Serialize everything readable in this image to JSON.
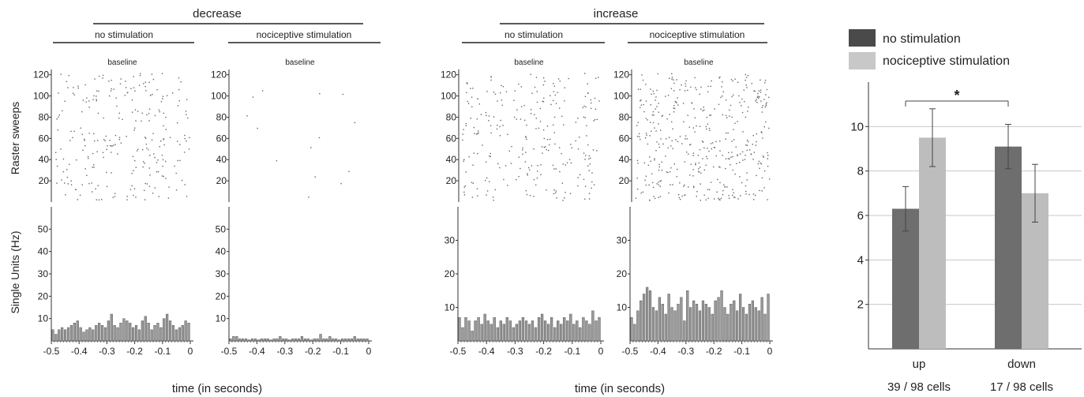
{
  "headers": {
    "decrease": "decrease",
    "increase": "increase",
    "no_stim": "no stimulation",
    "noci_stim": "nociceptive stimulation",
    "baseline": "baseline"
  },
  "axis_labels": {
    "raster": "Raster sweeps",
    "single_units": "Single Units (Hz)",
    "time": "time (in seconds)"
  },
  "legend": {
    "no_stim": "no stimulation",
    "noci_stim": "nociceptive stimulation"
  },
  "colors": {
    "no_stim_bar": "#6e6e6e",
    "noci_stim_bar": "#bdbdbd",
    "hist_bar": "#9a9a9a",
    "raster_dot": "#666666",
    "legend_dark": "#4a4a4a",
    "legend_light": "#c8c8c8"
  },
  "chart_data": [
    {
      "type": "scatter",
      "group": "decrease",
      "condition": "no stimulation",
      "title": "baseline",
      "ylabel": "Raster sweeps",
      "xlim": [
        -0.5,
        0
      ],
      "ylim": [
        0,
        125
      ],
      "yticks": [
        "20",
        "40",
        "60",
        "80",
        "100",
        "120"
      ],
      "density": "high"
    },
    {
      "type": "scatter",
      "group": "decrease",
      "condition": "nociceptive stimulation",
      "title": "baseline",
      "xlim": [
        -0.5,
        0
      ],
      "ylim": [
        0,
        125
      ],
      "yticks": [
        "20",
        "40",
        "60",
        "80",
        "100",
        "120"
      ],
      "density": "sparse"
    },
    {
      "type": "scatter",
      "group": "increase",
      "condition": "no stimulation",
      "title": "baseline",
      "xlim": [
        -0.5,
        0
      ],
      "ylim": [
        0,
        125
      ],
      "yticks": [
        "20",
        "40",
        "60",
        "80",
        "100",
        "120"
      ],
      "density": "high"
    },
    {
      "type": "scatter",
      "group": "increase",
      "condition": "nociceptive stimulation",
      "title": "baseline",
      "xlim": [
        -0.5,
        0
      ],
      "ylim": [
        0,
        125
      ],
      "yticks": [
        "20",
        "40",
        "60",
        "80",
        "100",
        "120"
      ],
      "density": "very high"
    },
    {
      "type": "bar",
      "group": "decrease",
      "condition": "no stimulation",
      "ylabel": "Single Units (Hz)",
      "xlabel": "time (in seconds)",
      "xlim": [
        -0.5,
        0
      ],
      "ylim": [
        0,
        60
      ],
      "yticks": [
        "10",
        "20",
        "30",
        "40",
        "50"
      ],
      "xticks": [
        "-0.5",
        "-0.4",
        "-0.3",
        "-0.2",
        "-0.1",
        "0"
      ],
      "values": [
        5,
        3,
        5,
        6,
        5,
        6,
        7,
        8,
        9,
        6,
        4,
        5,
        6,
        5,
        7,
        8,
        7,
        6,
        9,
        12,
        7,
        6,
        8,
        10,
        9,
        8,
        6,
        7,
        5,
        9,
        11,
        8,
        5,
        7,
        8,
        6,
        10,
        12,
        9,
        7,
        5,
        6,
        7,
        9,
        8
      ]
    },
    {
      "type": "bar",
      "group": "decrease",
      "condition": "nociceptive stimulation",
      "xlim": [
        -0.5,
        0
      ],
      "ylim": [
        0,
        60
      ],
      "yticks": [
        "10",
        "20",
        "30",
        "40",
        "50"
      ],
      "xticks": [
        "-0.5",
        "-0.4",
        "-0.3",
        "-0.2",
        "-0.1",
        "0"
      ],
      "values": [
        1,
        2,
        2,
        1,
        1,
        1,
        0.5,
        1,
        1,
        0.5,
        1,
        1,
        1,
        0.5,
        1,
        1,
        2,
        1,
        1,
        0.5,
        1,
        1,
        1,
        2,
        1,
        1,
        0.5,
        1,
        1,
        3,
        1,
        1,
        2,
        1,
        1,
        0.5,
        1,
        1,
        1,
        1,
        2,
        1,
        1,
        1,
        1
      ]
    },
    {
      "type": "bar",
      "group": "increase",
      "condition": "no stimulation",
      "xlabel": "time (in seconds)",
      "xlim": [
        -0.5,
        0
      ],
      "ylim": [
        0,
        40
      ],
      "yticks": [
        "10",
        "20",
        "30"
      ],
      "xticks": [
        "-0.5",
        "-0.4",
        "-0.3",
        "-0.2",
        "-0.1",
        "0"
      ],
      "values": [
        7,
        4,
        7,
        6,
        3,
        6,
        7,
        5,
        8,
        6,
        5,
        7,
        4,
        6,
        5,
        7,
        6,
        4,
        5,
        6,
        7,
        6,
        5,
        6,
        4,
        7,
        8,
        6,
        5,
        7,
        4,
        6,
        5,
        7,
        6,
        8,
        5,
        6,
        4,
        7,
        6,
        5,
        9,
        6,
        7
      ]
    },
    {
      "type": "bar",
      "group": "increase",
      "condition": "nociceptive stimulation",
      "xlim": [
        -0.5,
        0
      ],
      "ylim": [
        0,
        40
      ],
      "yticks": [
        "10",
        "20",
        "30"
      ],
      "xticks": [
        "-0.5",
        "-0.4",
        "-0.3",
        "-0.2",
        "-0.1",
        "0"
      ],
      "values": [
        7,
        5,
        9,
        12,
        14,
        16,
        15,
        10,
        9,
        13,
        11,
        8,
        14,
        10,
        9,
        11,
        13,
        6,
        15,
        10,
        12,
        11,
        9,
        12,
        11,
        10,
        8,
        12,
        13,
        15,
        10,
        8,
        11,
        12,
        9,
        14,
        10,
        8,
        11,
        12,
        10,
        9,
        13,
        8,
        14
      ]
    },
    {
      "type": "bar",
      "categories": [
        "up",
        "down"
      ],
      "category_sublabels": [
        "39 / 98 cells",
        "17 / 98 cells"
      ],
      "series": [
        {
          "name": "no stimulation",
          "values": [
            6.3,
            9.1
          ],
          "errors": [
            1.0,
            1.0
          ]
        },
        {
          "name": "nociceptive stimulation",
          "values": [
            9.5,
            7.0
          ],
          "errors": [
            1.3,
            1.3
          ]
        }
      ],
      "ylim": [
        0,
        12
      ],
      "yticks": [
        "2",
        "4",
        "6",
        "8",
        "10"
      ],
      "grid": true,
      "legend": "top",
      "significance": {
        "symbol": "*",
        "between": [
          "up: no stimulation",
          "down: no stimulation"
        ]
      }
    }
  ]
}
